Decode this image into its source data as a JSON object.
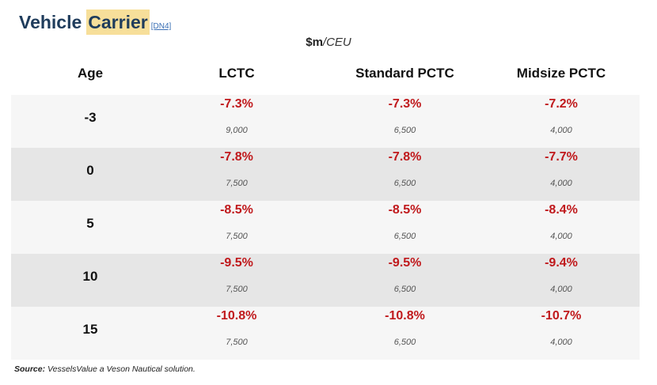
{
  "title": {
    "word1": "Vehicle",
    "word2": "Carrier",
    "ref": "[DN4]"
  },
  "unit": {
    "bold": "$m",
    "italic": "/CEU"
  },
  "headers": [
    "Age",
    "LCTC",
    "Standard PCTC",
    "Midsize PCTC"
  ],
  "rows": [
    {
      "age": "-3",
      "cells": [
        {
          "pct": "-7.3%",
          "ceu": "9,000"
        },
        {
          "pct": "-7.3%",
          "ceu": "6,500"
        },
        {
          "pct": "-7.2%",
          "ceu": "4,000"
        }
      ]
    },
    {
      "age": "0",
      "cells": [
        {
          "pct": "-7.8%",
          "ceu": "7,500"
        },
        {
          "pct": "-7.8%",
          "ceu": "6,500"
        },
        {
          "pct": "-7.7%",
          "ceu": "4,000"
        }
      ]
    },
    {
      "age": "5",
      "cells": [
        {
          "pct": "-8.5%",
          "ceu": "7,500"
        },
        {
          "pct": "-8.5%",
          "ceu": "6,500"
        },
        {
          "pct": "-8.4%",
          "ceu": "4,000"
        }
      ]
    },
    {
      "age": "10",
      "cells": [
        {
          "pct": "-9.5%",
          "ceu": "7,500"
        },
        {
          "pct": "-9.5%",
          "ceu": "6,500"
        },
        {
          "pct": "-9.4%",
          "ceu": "4,000"
        }
      ]
    },
    {
      "age": "15",
      "cells": [
        {
          "pct": "-10.8%",
          "ceu": "7,500"
        },
        {
          "pct": "-10.8%",
          "ceu": "6,500"
        },
        {
          "pct": "-10.7%",
          "ceu": "4,000"
        }
      ]
    }
  ],
  "source": {
    "label": "Source:",
    "text": " VesselsValue a Veson Nautical solution."
  },
  "colors": {
    "title": "#1f3c5c",
    "highlight": "#f7df9a",
    "negative": "#c0191c",
    "row_light": "#f6f6f6",
    "row_dark": "#e6e6e6"
  }
}
